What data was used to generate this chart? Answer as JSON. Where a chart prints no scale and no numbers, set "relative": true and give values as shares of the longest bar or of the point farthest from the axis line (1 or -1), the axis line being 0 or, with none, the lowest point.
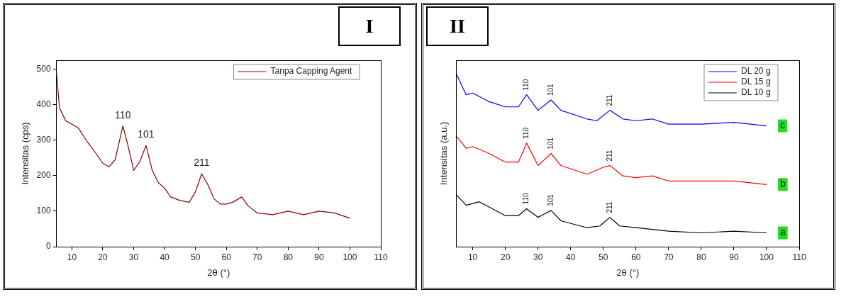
{
  "chart_data": [
    {
      "type": "line",
      "title": "I",
      "xlabel": "2θ (°)",
      "ylabel": "Intensitas (cps)",
      "legend": "top right",
      "marker": "none",
      "line_style": "solid",
      "grid": false,
      "xlim": [
        5,
        110
      ],
      "xticks": [
        10,
        20,
        30,
        40,
        50,
        60,
        70,
        80,
        90,
        100,
        110
      ],
      "ylim": [
        0,
        525
      ],
      "yticks": [
        0,
        100,
        200,
        300,
        400,
        500
      ],
      "series": [
        {
          "name": "Tanpa Capping Agent",
          "color": "#8b0000",
          "x": [
            5,
            6,
            8,
            10,
            12,
            15,
            18,
            20,
            22,
            24,
            26.5,
            28,
            30,
            32,
            34,
            36,
            38,
            40,
            42,
            45,
            48,
            50,
            52,
            54,
            56,
            58,
            60,
            62,
            65,
            67,
            70,
            75,
            80,
            85,
            90,
            95,
            100
          ],
          "values": [
            490,
            390,
            355,
            345,
            335,
            295,
            260,
            235,
            225,
            245,
            340,
            290,
            215,
            240,
            285,
            215,
            180,
            165,
            140,
            130,
            125,
            155,
            205,
            175,
            135,
            120,
            120,
            125,
            140,
            115,
            95,
            90,
            100,
            90,
            100,
            95,
            80
          ]
        }
      ],
      "annotations": [
        {
          "text": "110",
          "x": 26.5,
          "y": 340
        },
        {
          "text": "101",
          "x": 34,
          "y": 285
        },
        {
          "text": "211",
          "x": 52,
          "y": 205
        }
      ]
    },
    {
      "type": "line",
      "title": "II",
      "xlabel": "2θ (°)",
      "ylabel": "Intensitas (a.u.)",
      "legend": "top right",
      "marker": "none",
      "line_style": "solid",
      "grid": false,
      "relative": true,
      "xlim": [
        5,
        110
      ],
      "xticks": [
        10,
        20,
        30,
        40,
        50,
        60,
        70,
        80,
        90,
        100,
        110
      ],
      "series": [
        {
          "name": "DL 20 g",
          "color": "#0000ff",
          "x": [
            5,
            8,
            10,
            15,
            20,
            24,
            26.5,
            30,
            34,
            37,
            45,
            48,
            52,
            56,
            60,
            65,
            70,
            80,
            90,
            100
          ],
          "values": [
            1.0,
            0.88,
            0.89,
            0.84,
            0.81,
            0.81,
            0.88,
            0.79,
            0.85,
            0.79,
            0.74,
            0.73,
            0.79,
            0.74,
            0.73,
            0.74,
            0.71,
            0.71,
            0.72,
            0.7
          ]
        },
        {
          "name": "DL 15 g",
          "color": "#ff0000",
          "x": [
            5,
            8,
            10,
            15,
            20,
            24,
            26.5,
            30,
            34,
            37,
            45,
            50,
            52,
            56,
            60,
            65,
            70,
            80,
            90,
            100
          ],
          "values": [
            0.64,
            0.57,
            0.58,
            0.54,
            0.49,
            0.49,
            0.6,
            0.47,
            0.54,
            0.47,
            0.42,
            0.46,
            0.47,
            0.41,
            0.4,
            0.41,
            0.38,
            0.38,
            0.38,
            0.36
          ]
        },
        {
          "name": "DL 10 g",
          "color": "#000000",
          "x": [
            5,
            8,
            12,
            20,
            24,
            26.5,
            30,
            34,
            37,
            45,
            49,
            52,
            55,
            60,
            65,
            70,
            80,
            90,
            100
          ],
          "values": [
            0.3,
            0.24,
            0.26,
            0.18,
            0.18,
            0.22,
            0.17,
            0.21,
            0.15,
            0.11,
            0.12,
            0.17,
            0.12,
            0.11,
            0.1,
            0.09,
            0.08,
            0.09,
            0.08
          ]
        }
      ],
      "annotations": [
        {
          "text": "110",
          "x": 26.5,
          "y": 0.88
        },
        {
          "text": "101",
          "x": 34,
          "y": 0.85
        },
        {
          "text": "211",
          "x": 52,
          "y": 0.79
        },
        {
          "text": "110",
          "x": 26.5,
          "y": 0.6
        },
        {
          "text": "101",
          "x": 34,
          "y": 0.54
        },
        {
          "text": "211",
          "x": 52,
          "y": 0.47
        },
        {
          "text": "110",
          "x": 26.5,
          "y": 0.22
        },
        {
          "text": "101",
          "x": 34,
          "y": 0.21
        },
        {
          "text": "211",
          "x": 52,
          "y": 0.17
        },
        {
          "text": "c",
          "x": 100,
          "y": 0.7
        },
        {
          "text": "b",
          "x": 100,
          "y": 0.36
        },
        {
          "text": "a",
          "x": 100,
          "y": 0.08
        }
      ]
    }
  ]
}
